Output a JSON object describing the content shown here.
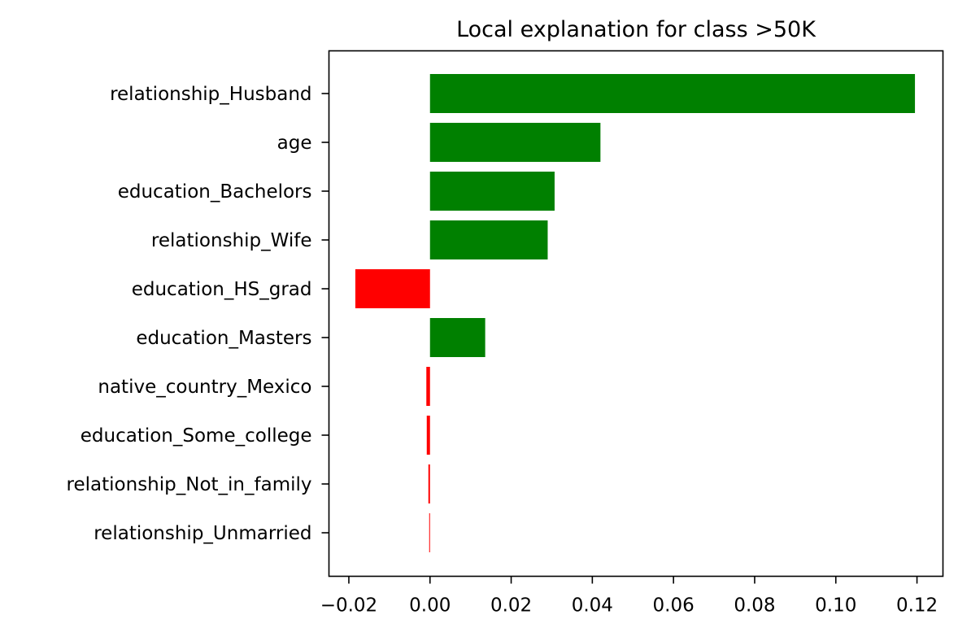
{
  "chart_data": {
    "type": "bar",
    "orientation": "horizontal",
    "title": "Local explanation for class >50K",
    "xlabel": "",
    "ylabel": "",
    "categories": [
      "relationship_Husband",
      "age",
      "education_Bachelors",
      "relationship_Wife",
      "education_HS_grad",
      "education_Masters",
      "native_country_Mexico",
      "education_Some_college",
      "relationship_Not_in_family",
      "relationship_Unmarried"
    ],
    "values": [
      0.1195,
      0.042,
      0.0307,
      0.029,
      -0.0184,
      0.0136,
      -0.0009,
      -0.0008,
      -0.0004,
      -0.0002
    ],
    "xlim": [
      -0.0249,
      0.1264
    ],
    "xticks": [
      -0.02,
      0.0,
      0.02,
      0.04,
      0.06,
      0.08,
      0.1,
      0.12
    ],
    "xtick_labels": [
      "−0.02",
      "0.00",
      "0.02",
      "0.04",
      "0.06",
      "0.08",
      "0.10",
      "0.12"
    ],
    "grid": false,
    "legend": "none",
    "colors": {
      "positive": "#008000",
      "negative": "#ff0000"
    }
  }
}
